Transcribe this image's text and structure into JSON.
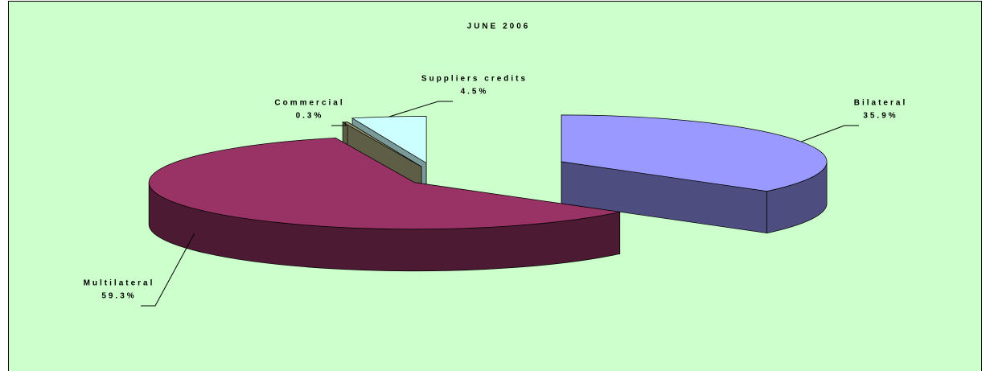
{
  "chart_data": {
    "type": "pie3d",
    "title": "JUNE 2006",
    "categories": [
      "Bilateral",
      "Multilateral",
      "Commercial",
      "Suppliers credits"
    ],
    "values": [
      35.9,
      59.3,
      0.3,
      4.5
    ],
    "value_labels": [
      "35.9%",
      "59.3%",
      "0.3%",
      "4.5%"
    ],
    "colors": [
      "#9999ff",
      "#993366",
      "#8c8c6a",
      "#ccffff"
    ],
    "side_colors": [
      "#4d4d80",
      "#4d1a33",
      "#5e5e47",
      "#7a9999"
    ],
    "background": "#ccffcc"
  }
}
